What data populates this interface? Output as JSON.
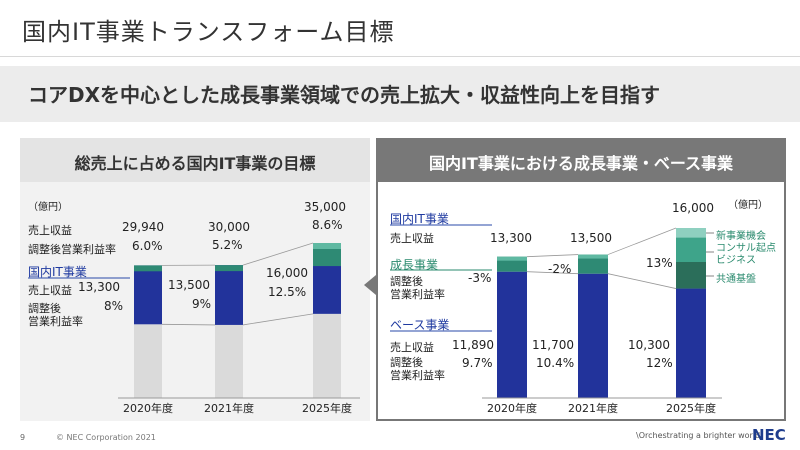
{
  "header": {
    "title": "国内IT事業トランスフォーム目標",
    "subtitle": "コアDXを中心とした成長事業領域での売上拡大・収益性向上を目指す"
  },
  "left_panel": {
    "heading": "総売上に占める国内IT事業の目標",
    "unit": "（億円）",
    "row_revenue": "売上収益",
    "row_margin": "調整後営業利益率",
    "domestic_label": "国内IT事業",
    "row_revenue2": "売上収益",
    "row_margin2a": "調整後",
    "row_margin2b": "営業利益率",
    "totals": [
      {
        "revenue": "29,940",
        "margin": "6.0%"
      },
      {
        "revenue": "30,000",
        "margin": "5.2%"
      },
      {
        "revenue": "35,000",
        "margin": "8.6%"
      }
    ],
    "domestic": [
      {
        "revenue": "13,300",
        "margin": "8%"
      },
      {
        "revenue": "13,500",
        "margin": "9%"
      },
      {
        "revenue": "16,000",
        "margin": "12.5%"
      }
    ]
  },
  "right_panel": {
    "heading": "国内IT事業における成長事業・ベース事業",
    "unit": "（億円）",
    "domestic_label": "国内IT事業",
    "row_revenue": "売上収益",
    "growth_label": "成長事業",
    "growth_margin_a": "調整後",
    "growth_margin_b": "営業利益率",
    "base_label": "ベース事業",
    "base_revenue": "売上収益",
    "base_margin_a": "調整後",
    "base_margin_b": "営業利益率",
    "totals": [
      "13,300",
      "13,500",
      "16,000"
    ],
    "growth_margins": [
      "-3%",
      "-2%",
      "13%"
    ],
    "base": [
      {
        "revenue": "11,890",
        "margin": "9.7%"
      },
      {
        "revenue": "11,700",
        "margin": "10.4%"
      },
      {
        "revenue": "10,300",
        "margin": "12%"
      }
    ],
    "legend": [
      "新事業機会",
      "コンサル起点ビジネス",
      "共通基盤"
    ]
  },
  "chart_data": [
    {
      "type": "bar",
      "title": "総売上に占める国内IT事業の目標",
      "unit": "億円",
      "categories": [
        "2020年度",
        "2021年度",
        "2025年度"
      ],
      "series": [
        {
          "name": "国内IT事業",
          "values": [
            13300,
            13500,
            16000
          ]
        },
        {
          "name": "",
          "values": [
            16640,
            16500,
            19000
          ]
        }
      ],
      "totals": [
        29940,
        30000,
        35000
      ],
      "total_margin_pct": [
        6.0,
        5.2,
        8.6
      ],
      "domestic_margin_pct": [
        8,
        9,
        12.5
      ],
      "colors": {
        "domestic": "#22339b",
        "other": "#dadada",
        "top": "#2e8a74",
        "top_light": "#5fb9a2"
      }
    },
    {
      "type": "bar",
      "title": "国内IT事業における成長事業・ベース事業",
      "unit": "億円",
      "categories": [
        "2020年度",
        "2021年度",
        "2025年度"
      ],
      "series": [
        {
          "name": "ベース事業",
          "values": [
            11890,
            11700,
            10300
          ]
        },
        {
          "name": "成長事業",
          "values": [
            1410,
            1800,
            5700
          ]
        }
      ],
      "totals": [
        13300,
        13500,
        16000
      ],
      "growth_margin_pct": [
        -3,
        -2,
        13
      ],
      "base_margin_pct": [
        9.7,
        10.4,
        12
      ],
      "growth_breakdown_2025": [
        {
          "name": "新事業機会",
          "value": 900
        },
        {
          "name": "コンサル起点ビジネス",
          "value": 2300
        },
        {
          "name": "共通基盤",
          "value": 2500
        }
      ]
    }
  ],
  "footer": {
    "page": "9",
    "copyright": "© NEC Corporation 2021",
    "tagline": "\\Orchestrating a brighter world",
    "logo": "NEC"
  }
}
